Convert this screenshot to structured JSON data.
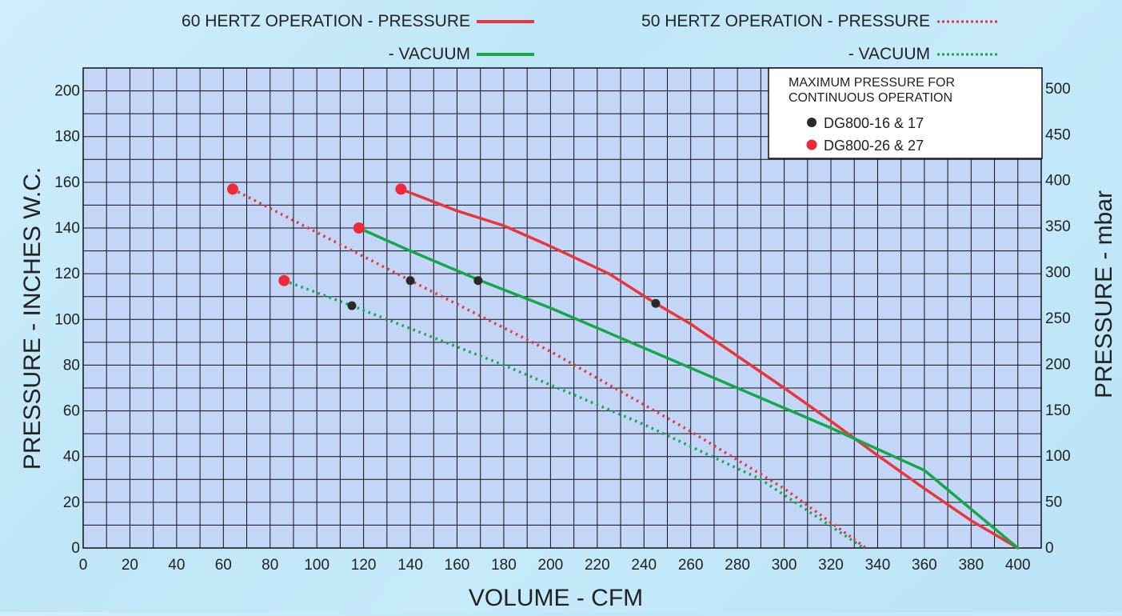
{
  "chart_data": {
    "type": "line",
    "xlabel": "VOLUME - CFM",
    "ylabel": "PRESSURE - INCHES W.C.",
    "y2label": "PRESSURE - mbar",
    "xlim": [
      0,
      410
    ],
    "ylim": [
      0,
      210
    ],
    "y2lim": [
      0,
      522.5
    ],
    "grid": true,
    "x_ticks": [
      0,
      20,
      40,
      60,
      80,
      100,
      120,
      140,
      160,
      180,
      200,
      220,
      240,
      260,
      280,
      300,
      320,
      340,
      360,
      380,
      400
    ],
    "y_ticks": [
      0,
      20,
      40,
      60,
      80,
      100,
      120,
      140,
      160,
      180,
      200
    ],
    "y2_ticks": [
      0,
      50,
      100,
      150,
      200,
      250,
      300,
      350,
      400,
      450,
      500
    ],
    "legend": {
      "items": [
        {
          "label": "60 HERTZ OPERATION - PRESSURE",
          "color": "#e8373c",
          "style": "solid"
        },
        {
          "label": "50 HERTZ OPERATION - PRESSURE",
          "color": "#e8373c",
          "style": "dotted"
        },
        {
          "label": "- VACUUM",
          "color": "#14a84a",
          "style": "solid"
        },
        {
          "label": "- VACUUM",
          "color": "#14a84a",
          "style": "dotted"
        }
      ]
    },
    "series": [
      {
        "key": "p60",
        "color": "#e8373c",
        "style": "solid",
        "x": [
          136,
          160,
          180,
          200,
          225,
          245,
          260,
          280,
          300,
          320,
          340,
          360,
          380,
          400
        ],
        "y": [
          157,
          147.5,
          141,
          132,
          120,
          107,
          98,
          84,
          70,
          55.5,
          40.5,
          26,
          12,
          0
        ]
      },
      {
        "key": "v60",
        "color": "#14a84a",
        "style": "solid",
        "x": [
          118,
          140,
          170,
          200,
          240,
          280,
          320,
          360,
          400
        ],
        "y": [
          140,
          130,
          117,
          105,
          87.5,
          70,
          52.5,
          34,
          0
        ]
      },
      {
        "key": "p50",
        "color": "#e8373c",
        "style": "dotted",
        "x": [
          64,
          140,
          200,
          260,
          300,
          335
        ],
        "y": [
          157,
          117,
          86,
          51,
          26,
          0
        ]
      },
      {
        "key": "v50",
        "color": "#14a84a",
        "style": "dotted",
        "x": [
          86,
          115,
          180,
          240,
          290,
          334
        ],
        "y": [
          117,
          106,
          80,
          54,
          30,
          0
        ]
      }
    ],
    "max_pressure_points": {
      "title_lines": [
        "MAXIMUM PRESSURE FOR",
        "CONTINUOUS OPERATION"
      ],
      "groups": [
        {
          "label": "DG800-16 & 17",
          "color": "#2a2a2a",
          "points": [
            [
              115,
              106
            ],
            [
              140,
              117
            ],
            [
              169,
              117
            ],
            [
              245,
              107
            ]
          ]
        },
        {
          "label": "DG800-26 & 27",
          "color": "#ee2a3a",
          "points": [
            [
              64,
              157
            ],
            [
              86,
              117
            ],
            [
              118,
              140
            ],
            [
              136,
              157
            ]
          ]
        }
      ]
    }
  }
}
